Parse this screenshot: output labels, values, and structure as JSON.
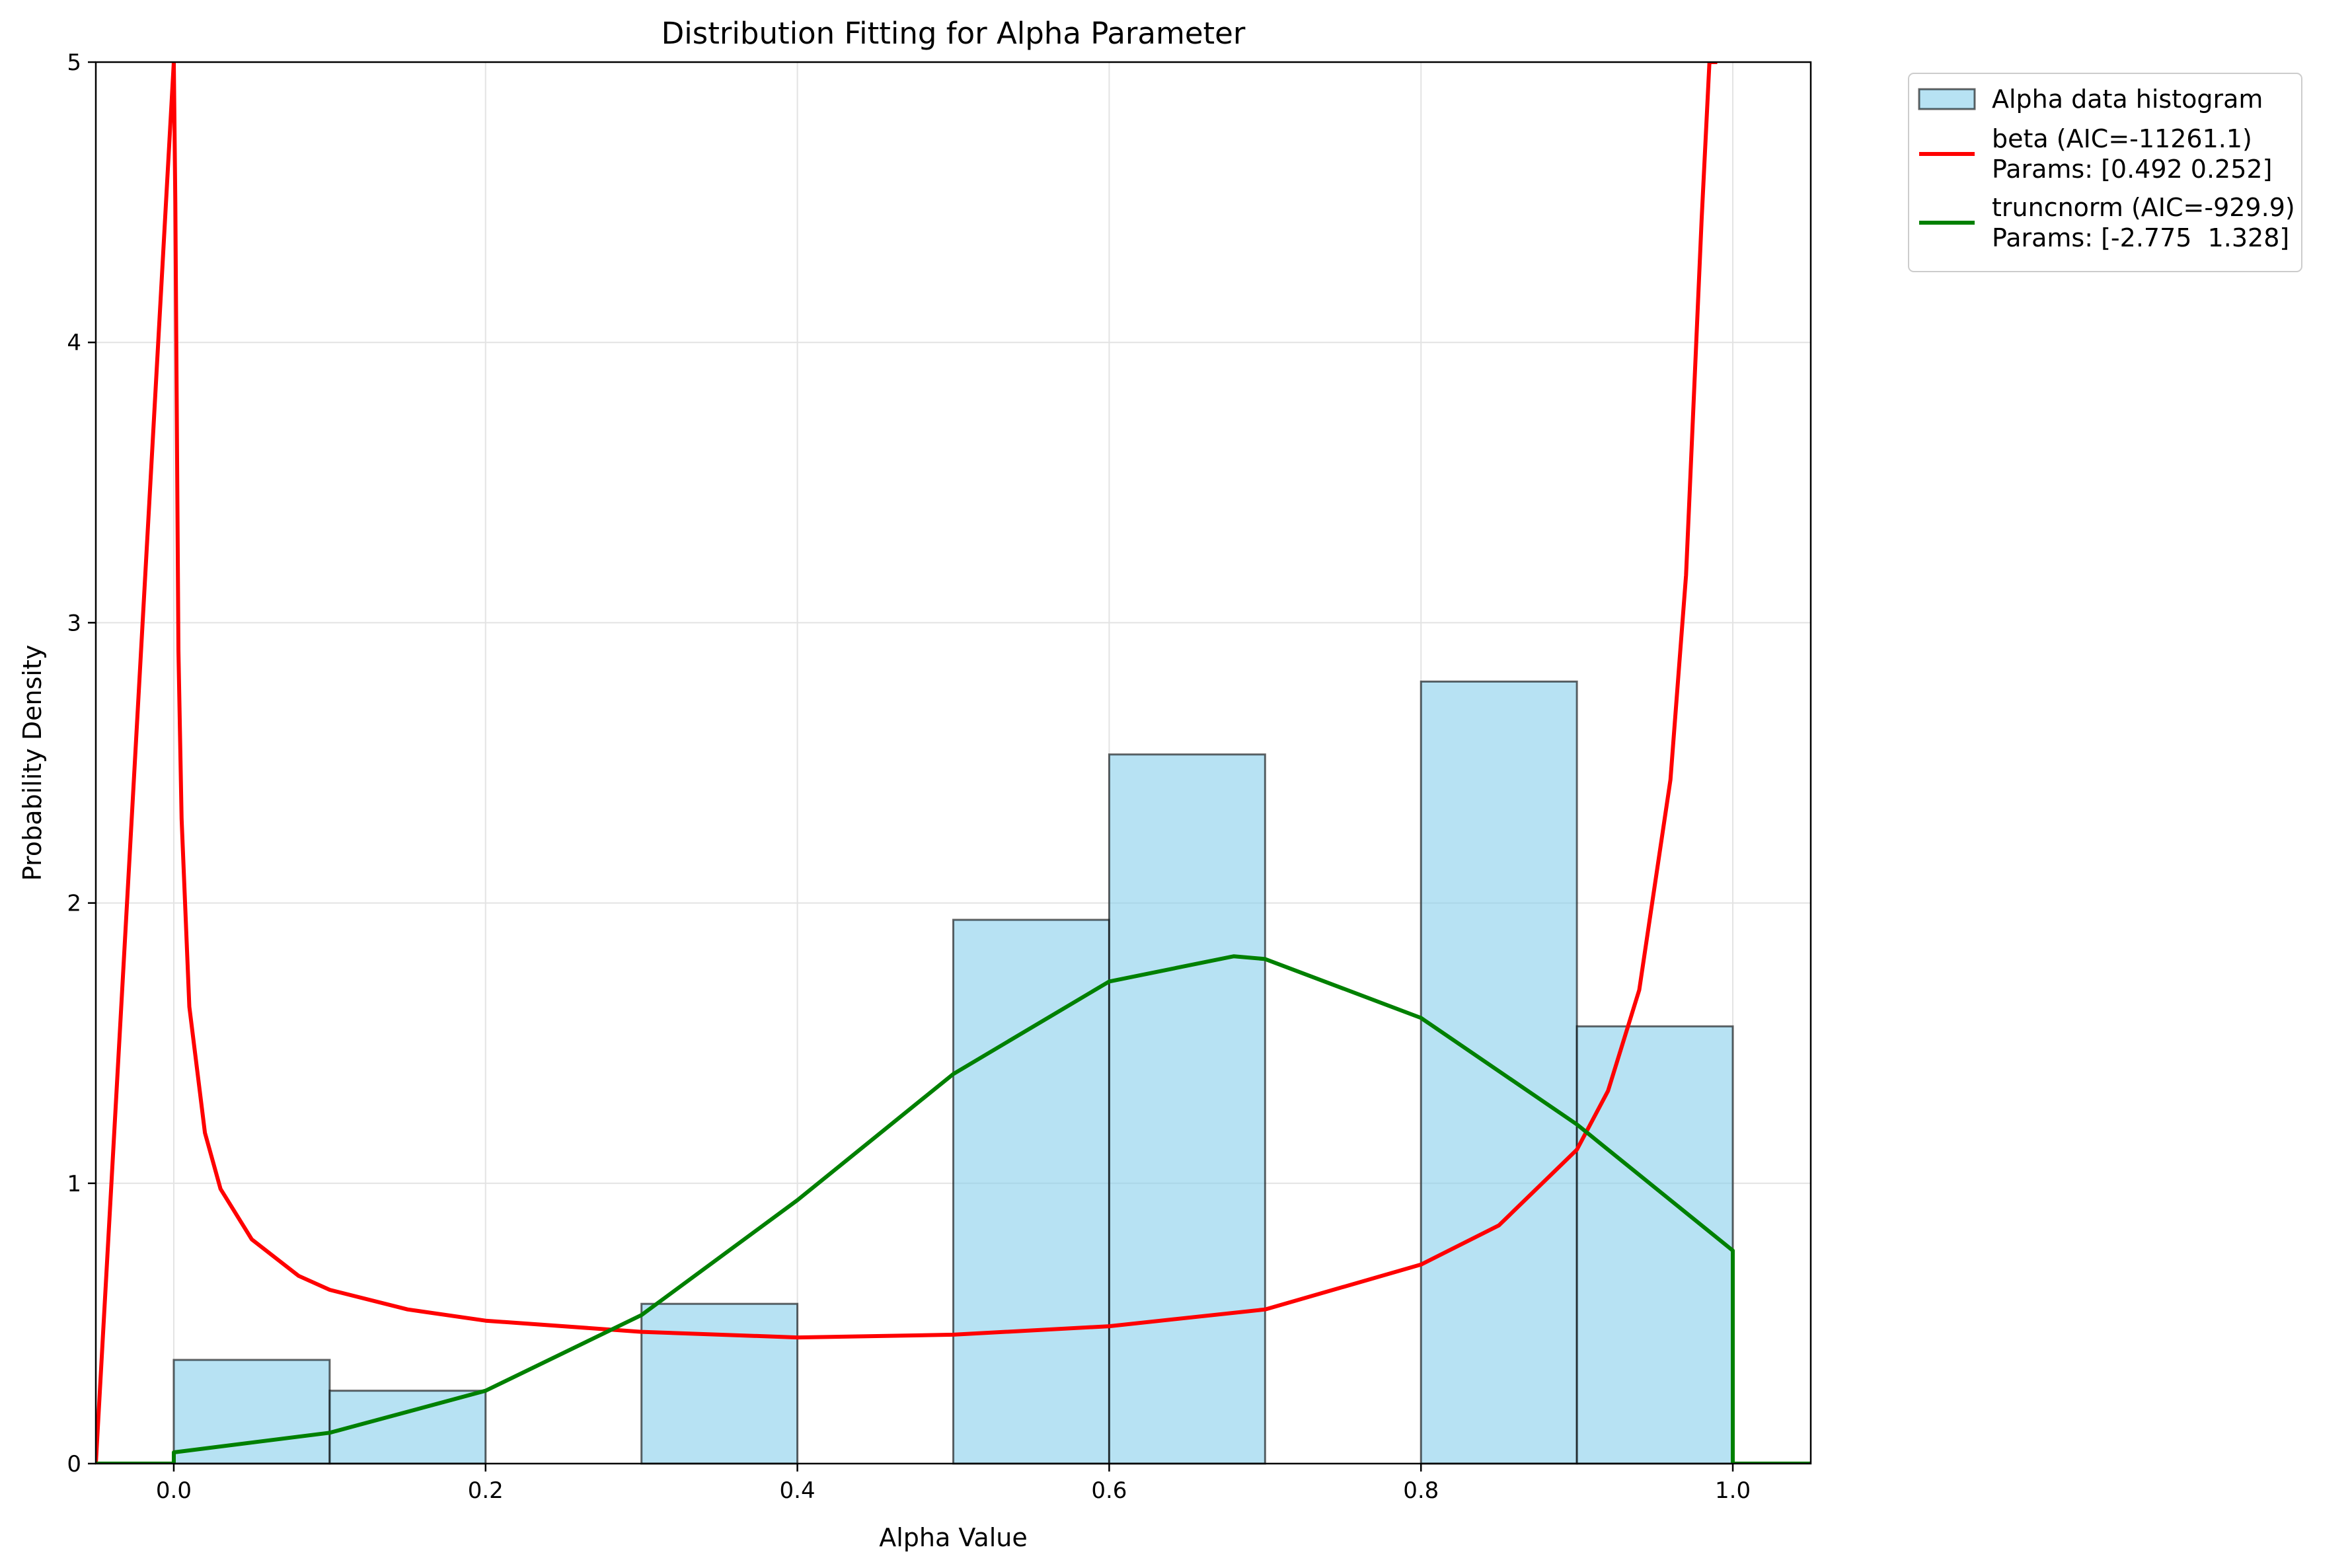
{
  "chart_data": {
    "type": "bar",
    "title": "Distribution Fitting for Alpha Parameter",
    "xlabel": "Alpha Value",
    "ylabel": "Probability Density",
    "xlim": [
      -0.05,
      1.05
    ],
    "ylim": [
      0,
      5
    ],
    "xticks": [
      "0.0",
      "0.2",
      "0.4",
      "0.6",
      "0.8",
      "1.0"
    ],
    "xtick_values": [
      0.0,
      0.2,
      0.4,
      0.6,
      0.8,
      1.0
    ],
    "yticks": [
      "0",
      "1",
      "2",
      "3",
      "4",
      "5"
    ],
    "ytick_values": [
      0,
      1,
      2,
      3,
      4,
      5
    ],
    "grid": true,
    "legend_position": "outside-top-right",
    "histogram": {
      "name": "Alpha data histogram",
      "bin_edges": [
        0.0,
        0.1,
        0.2,
        0.3,
        0.4,
        0.5,
        0.6,
        0.7,
        0.8,
        0.9,
        1.0
      ],
      "values": [
        0.37,
        0.26,
        0.0,
        0.57,
        0.0,
        1.94,
        2.53,
        0.0,
        2.79,
        1.56
      ],
      "fill": "#87ceeb",
      "edge": "#000000"
    },
    "series": [
      {
        "name": "beta (AIC=-11261.1)",
        "params": "Params: [0.492 0.252]",
        "color": "#ff0000",
        "x": [
          -0.05,
          0.0,
          0.001,
          0.003,
          0.005,
          0.01,
          0.02,
          0.03,
          0.05,
          0.08,
          0.1,
          0.15,
          0.2,
          0.3,
          0.4,
          0.5,
          0.6,
          0.7,
          0.8,
          0.85,
          0.9,
          0.92,
          0.94,
          0.96,
          0.97,
          0.98,
          0.985,
          0.99
        ],
        "y": [
          0,
          5.0,
          4.5,
          2.9,
          2.3,
          1.63,
          1.18,
          0.98,
          0.8,
          0.67,
          0.62,
          0.55,
          0.51,
          0.47,
          0.45,
          0.46,
          0.49,
          0.55,
          0.71,
          0.85,
          1.12,
          1.33,
          1.69,
          2.44,
          3.17,
          4.44,
          5.0,
          5.0
        ]
      },
      {
        "name": "truncnorm (AIC=-929.9)",
        "params": "Params: [-2.775  1.328]",
        "color": "#008000",
        "x": [
          -0.05,
          0.0,
          0.0,
          0.1,
          0.2,
          0.3,
          0.4,
          0.5,
          0.6,
          0.68,
          0.7,
          0.8,
          0.9,
          1.0,
          1.0,
          1.05
        ],
        "y": [
          0,
          0,
          0.04,
          0.11,
          0.26,
          0.53,
          0.94,
          1.39,
          1.72,
          1.81,
          1.8,
          1.59,
          1.21,
          0.76,
          0,
          0
        ]
      }
    ]
  }
}
